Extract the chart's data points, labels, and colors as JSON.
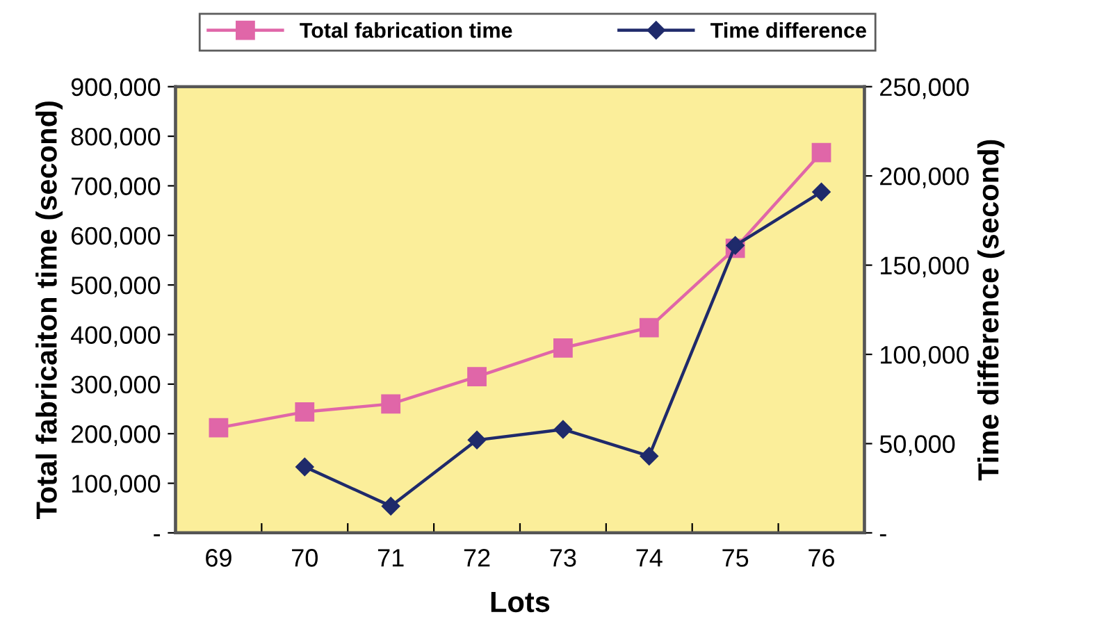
{
  "chart_data": {
    "type": "line",
    "xlabel": "Lots",
    "ylabel": "Total fabricaiton time (second)",
    "y2label": "Time difference (second)",
    "categories": [
      "69",
      "70",
      "71",
      "72",
      "73",
      "74",
      "75",
      "76"
    ],
    "series": [
      {
        "name": "Total fabrication time",
        "color": "#e066a8",
        "marker": "square",
        "values": [
          212000,
          244000,
          260000,
          315000,
          373000,
          414000,
          574000,
          767000
        ]
      },
      {
        "name": "Time difference",
        "color": "#1f2a6b",
        "marker": "diamond",
        "axis": "y2",
        "values": [
          null,
          37000,
          15000,
          52000,
          58000,
          43000,
          161000,
          191000
        ]
      }
    ],
    "ylim": [
      0,
      900000
    ],
    "yticks": [
      {
        "value": 0,
        "label": "-"
      },
      {
        "value": 100000,
        "label": "100,000"
      },
      {
        "value": 200000,
        "label": "200,000"
      },
      {
        "value": 300000,
        "label": "300,000"
      },
      {
        "value": 400000,
        "label": "400,000"
      },
      {
        "value": 500000,
        "label": "500,000"
      },
      {
        "value": 600000,
        "label": "600,000"
      },
      {
        "value": 700000,
        "label": "700,000"
      },
      {
        "value": 800000,
        "label": "800,000"
      },
      {
        "value": 900000,
        "label": "900,000"
      }
    ],
    "y2lim": [
      0,
      250000
    ],
    "y2ticks": [
      {
        "value": 0,
        "label": "-"
      },
      {
        "value": 50000,
        "label": "50,000"
      },
      {
        "value": 100000,
        "label": "100,000"
      },
      {
        "value": 150000,
        "label": "150,000"
      },
      {
        "value": 200000,
        "label": "200,000"
      },
      {
        "value": 250000,
        "label": "250,000"
      }
    ],
    "grid": false,
    "legend": "top",
    "line_style": "solid"
  }
}
